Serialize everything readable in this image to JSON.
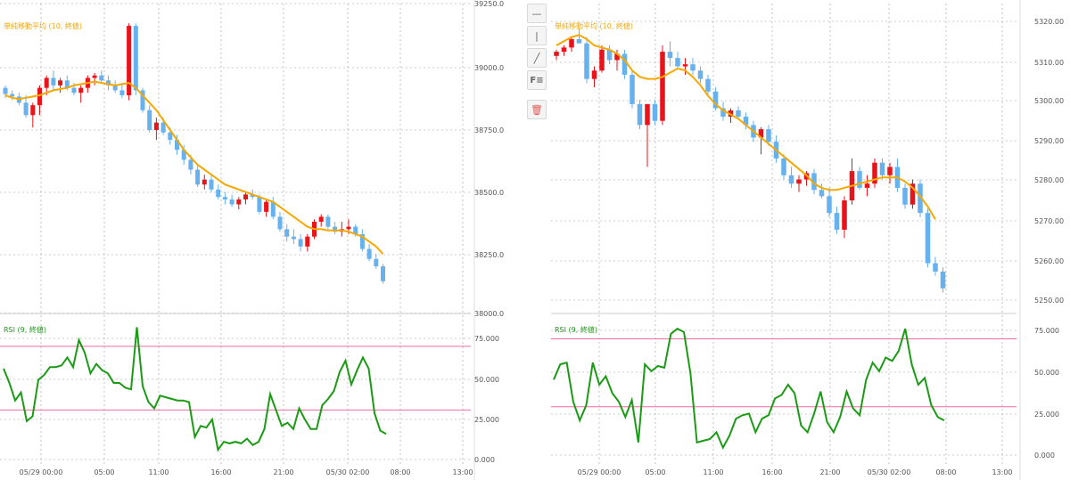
{
  "colors": {
    "up": "#e8141b",
    "down": "#67b2ee",
    "ma": "#f5a800",
    "rsi": "#1b9a15",
    "band": "#f06aa6",
    "grid": "#9a9a9a",
    "ma_label": "#f5a800",
    "rsi_label": "#1b9a15"
  },
  "toolbar": {
    "items": [
      {
        "icon": "horizontal-line-icon",
        "glyph": "—"
      },
      {
        "icon": "vertical-line-icon",
        "glyph": "|"
      },
      {
        "icon": "trend-line-icon",
        "glyph": "╱"
      },
      {
        "icon": "fibonacci-icon",
        "glyph": "F≡"
      },
      {
        "icon": "trash-icon",
        "glyph": "🗑"
      }
    ]
  },
  "chart_data": [
    {
      "type": "candlestick",
      "indicator_label": "単純移動平均 (10, 終値)",
      "rsi_label": "RSI (9, 終値)",
      "x_tick_labels": [
        "05/29 00:00",
        "05:00",
        "11:00",
        "16:00",
        "21:00",
        "05/30 02:00",
        "08:00",
        "13:00"
      ],
      "y_tick_labels": [
        "39250.0",
        "39000.0",
        "38750.0",
        "38500.0",
        "38250.0",
        "38000.0"
      ],
      "rsi_tick_labels": [
        "75.000",
        "50.000",
        "25.000",
        "0.000"
      ],
      "ylim": [
        38000,
        39250
      ],
      "rsi_levels": [
        70,
        30
      ],
      "candles": [
        [
          38910,
          38920,
          38870,
          38885
        ],
        [
          38885,
          38900,
          38860,
          38875
        ],
        [
          38875,
          38890,
          38840,
          38850
        ],
        [
          38850,
          38880,
          38790,
          38800
        ],
        [
          38800,
          38850,
          38750,
          38840
        ],
        [
          38840,
          38920,
          38800,
          38910
        ],
        [
          38910,
          38960,
          38880,
          38950
        ],
        [
          38950,
          38980,
          38900,
          38920
        ],
        [
          38920,
          38950,
          38890,
          38940
        ],
        [
          38940,
          38960,
          38900,
          38910
        ],
        [
          38910,
          38930,
          38880,
          38890
        ],
        [
          38890,
          38920,
          38850,
          38910
        ],
        [
          38910,
          38960,
          38890,
          38950
        ],
        [
          38950,
          38970,
          38920,
          38960
        ],
        [
          38960,
          38980,
          38930,
          38940
        ],
        [
          38940,
          38960,
          38900,
          38920
        ],
        [
          38920,
          38940,
          38890,
          38900
        ],
        [
          38900,
          38930,
          38870,
          38880
        ],
        [
          38880,
          39170,
          38860,
          39160
        ],
        [
          39160,
          39170,
          38880,
          38900
        ],
        [
          38900,
          38910,
          38810,
          38820
        ],
        [
          38820,
          38840,
          38730,
          38740
        ],
        [
          38740,
          38790,
          38700,
          38770
        ],
        [
          38770,
          38790,
          38720,
          38730
        ],
        [
          38730,
          38750,
          38680,
          38700
        ],
        [
          38700,
          38720,
          38640,
          38660
        ],
        [
          38660,
          38680,
          38600,
          38620
        ],
        [
          38620,
          38640,
          38560,
          38580
        ],
        [
          38580,
          38600,
          38510,
          38520
        ],
        [
          38520,
          38560,
          38500,
          38540
        ],
        [
          38540,
          38560,
          38490,
          38500
        ],
        [
          38500,
          38520,
          38460,
          38470
        ],
        [
          38470,
          38490,
          38440,
          38460
        ],
        [
          38460,
          38480,
          38430,
          38440
        ],
        [
          38440,
          38470,
          38420,
          38460
        ],
        [
          38460,
          38490,
          38440,
          38480
        ],
        [
          38480,
          38500,
          38460,
          38470
        ],
        [
          38470,
          38480,
          38400,
          38410
        ],
        [
          38410,
          38460,
          38390,
          38450
        ],
        [
          38450,
          38470,
          38380,
          38390
        ],
        [
          38390,
          38410,
          38330,
          38340
        ],
        [
          38340,
          38360,
          38290,
          38310
        ],
        [
          38310,
          38340,
          38280,
          38300
        ],
        [
          38300,
          38320,
          38250,
          38270
        ],
        [
          38270,
          38320,
          38250,
          38310
        ],
        [
          38310,
          38380,
          38300,
          38370
        ],
        [
          38370,
          38400,
          38350,
          38390
        ],
        [
          38390,
          38400,
          38340,
          38350
        ],
        [
          38350,
          38370,
          38320,
          38330
        ],
        [
          38330,
          38370,
          38310,
          38340
        ],
        [
          38340,
          38380,
          38320,
          38350
        ],
        [
          38350,
          38360,
          38310,
          38320
        ],
        [
          38320,
          38340,
          38250,
          38260
        ],
        [
          38260,
          38280,
          38210,
          38220
        ],
        [
          38220,
          38240,
          38180,
          38190
        ],
        [
          38190,
          38200,
          38120,
          38130
        ]
      ],
      "ma": [
        38880,
        38870,
        38865,
        38870,
        38875,
        38880,
        38890,
        38900,
        38905,
        38910,
        38920,
        38925,
        38930,
        38935,
        38930,
        38925,
        38920,
        38925,
        38930,
        38910,
        38880,
        38850,
        38820,
        38780,
        38740,
        38700,
        38660,
        38630,
        38600,
        38580,
        38560,
        38540,
        38520,
        38510,
        38500,
        38490,
        38480,
        38470,
        38460,
        38450,
        38430,
        38410,
        38390,
        38370,
        38350,
        38340,
        38340,
        38335,
        38335,
        38335,
        38330,
        38320,
        38310,
        38290,
        38270,
        38240
      ],
      "rsi": [
        56,
        47,
        36,
        41,
        23,
        26,
        49,
        52,
        57,
        57,
        58,
        63,
        57,
        74,
        66,
        53,
        59,
        55,
        53,
        47,
        47,
        44,
        43,
        82,
        45,
        35,
        31,
        39,
        38,
        37,
        36,
        36,
        35,
        13,
        20,
        19,
        24,
        5,
        10,
        9,
        10,
        9,
        12,
        8,
        10,
        18,
        40,
        30,
        20,
        22,
        18,
        31,
        24,
        18,
        18,
        33,
        37,
        42,
        54,
        61,
        46,
        55,
        63,
        56,
        28,
        17,
        15
      ]
    },
    {
      "type": "candlestick",
      "indicator_label": "単純移動平均 (10, 終値)",
      "rsi_label": "RSI (9, 終値)",
      "x_tick_labels": [
        "05/29 00:00",
        "05:00",
        "11:00",
        "16:00",
        "21:00",
        "05/30 02:00",
        "08:00",
        "13:00"
      ],
      "y_tick_labels": [
        "5320.00",
        "5310.00",
        "5300.00",
        "5290.00",
        "5280.00",
        "5270.00",
        "5260.00",
        "5250.00"
      ],
      "rsi_tick_labels": [
        "75.000",
        "50.000",
        "25.000",
        "0.000"
      ],
      "ylim": [
        5248,
        5322
      ],
      "rsi_levels": [
        70,
        30
      ],
      "candles": [
        [
          5309.5,
          5311,
          5308.5,
          5310.5
        ],
        [
          5310.5,
          5312,
          5309.5,
          5311.5
        ],
        [
          5311.5,
          5314,
          5310.5,
          5313.5
        ],
        [
          5313.5,
          5316,
          5312.5,
          5312.5
        ],
        [
          5312.5,
          5314,
          5303,
          5304
        ],
        [
          5304,
          5307,
          5302,
          5306
        ],
        [
          5306,
          5312,
          5305.5,
          5311
        ],
        [
          5311,
          5312,
          5307.5,
          5308.5
        ],
        [
          5308.5,
          5311,
          5306,
          5310
        ],
        [
          5310,
          5311,
          5304,
          5305
        ],
        [
          5305,
          5306,
          5297,
          5298
        ],
        [
          5298,
          5299,
          5292,
          5293
        ],
        [
          5293,
          5298,
          5283,
          5298
        ],
        [
          5298,
          5299,
          5293,
          5294
        ],
        [
          5294,
          5312,
          5293,
          5310.5
        ],
        [
          5310.5,
          5313,
          5307,
          5309
        ],
        [
          5309,
          5310.5,
          5306.5,
          5307
        ],
        [
          5307,
          5309,
          5305,
          5307.5
        ],
        [
          5307.5,
          5309,
          5305,
          5306
        ],
        [
          5306,
          5307,
          5303,
          5304
        ],
        [
          5304,
          5305,
          5300,
          5301
        ],
        [
          5301,
          5302,
          5296.5,
          5297
        ],
        [
          5297,
          5298.5,
          5294,
          5295
        ],
        [
          5295,
          5297,
          5293.5,
          5296.5
        ],
        [
          5296.5,
          5297.5,
          5294.5,
          5295
        ],
        [
          5295,
          5296,
          5292,
          5293
        ],
        [
          5293,
          5294,
          5289,
          5290
        ],
        [
          5290,
          5292.5,
          5286,
          5292
        ],
        [
          5292,
          5293,
          5288,
          5289
        ],
        [
          5289,
          5290.5,
          5284,
          5285
        ],
        [
          5285,
          5286,
          5280,
          5281
        ],
        [
          5281,
          5283,
          5278,
          5279
        ],
        [
          5279,
          5281,
          5277,
          5280
        ],
        [
          5280,
          5282,
          5278.5,
          5281.5
        ],
        [
          5281.5,
          5282.5,
          5276.5,
          5277.5
        ],
        [
          5277.5,
          5279,
          5275.5,
          5276
        ],
        [
          5276,
          5278,
          5271,
          5272
        ],
        [
          5272,
          5273.5,
          5267,
          5268
        ],
        [
          5268,
          5276,
          5266,
          5275
        ],
        [
          5275,
          5285,
          5274,
          5282
        ],
        [
          5282,
          5283,
          5277.5,
          5278
        ],
        [
          5278,
          5281,
          5276,
          5279
        ],
        [
          5279,
          5285,
          5278,
          5284
        ],
        [
          5284,
          5285,
          5280,
          5281
        ],
        [
          5281,
          5284,
          5279,
          5283
        ],
        [
          5283,
          5285,
          5277,
          5278
        ],
        [
          5278,
          5279,
          5273,
          5274
        ],
        [
          5274,
          5280,
          5273,
          5279
        ],
        [
          5279,
          5280,
          5271,
          5272
        ],
        [
          5272,
          5273,
          5259,
          5260
        ],
        [
          5260,
          5261.5,
          5257,
          5258
        ],
        [
          5258,
          5259,
          5253,
          5254
        ]
      ],
      "ma": [
        5312,
        5313,
        5314,
        5314.5,
        5313.5,
        5312,
        5311.5,
        5311,
        5310,
        5308.5,
        5306,
        5304.5,
        5304,
        5304,
        5304.5,
        5305.5,
        5306.5,
        5306,
        5304.5,
        5302.5,
        5300,
        5298,
        5296.5,
        5295.5,
        5294.5,
        5293,
        5291.5,
        5290,
        5288.5,
        5287,
        5285.5,
        5284,
        5282.5,
        5281,
        5279,
        5278,
        5277.5,
        5277.5,
        5278,
        5278.5,
        5279,
        5279.5,
        5280,
        5280.5,
        5280.5,
        5280.5,
        5279.5,
        5278,
        5276,
        5273.5,
        5270.5
      ],
      "rsi": [
        46,
        55,
        56,
        33,
        22,
        31,
        56,
        43,
        48,
        38,
        33,
        24,
        34,
        9,
        55,
        51,
        54,
        53,
        73,
        76,
        74,
        50,
        9,
        10,
        11,
        15,
        6,
        13,
        23,
        25,
        26,
        15,
        23,
        25,
        35,
        37,
        43,
        38,
        19,
        15,
        26,
        39,
        21,
        15,
        24,
        39,
        29,
        25,
        46,
        56,
        51,
        59,
        57,
        63,
        76,
        55,
        43,
        47,
        31,
        24,
        22
      ]
    }
  ]
}
